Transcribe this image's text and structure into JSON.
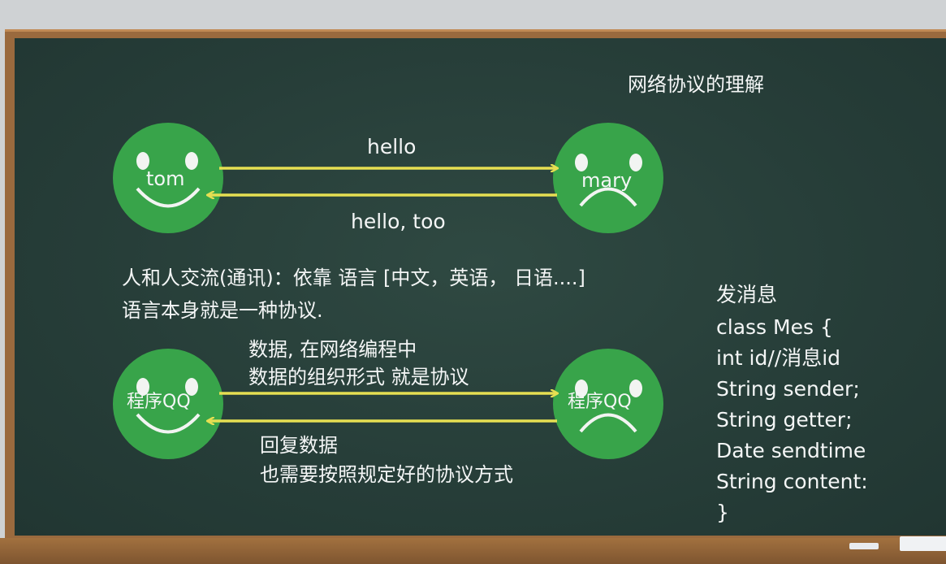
{
  "title": "网络协议的理解",
  "top": {
    "left_face_label": "tom",
    "right_face_label": "mary",
    "forward_label": "hello",
    "back_label": "hello, too"
  },
  "middle": {
    "line1": "人和人交流(通讯)：依靠 语言 [中文，英语， 日语....]",
    "line2": "语言本身就是一种协议."
  },
  "bottom": {
    "left_face_label": "程序QQ",
    "right_face_label": "程序QQ",
    "forward_line1": "数据, 在网络编程中",
    "forward_line2": "数据的组织形式 就是协议",
    "back_line1": "回复数据",
    "back_line2": "也需要按照规定好的协议方式"
  },
  "code": {
    "heading": "发消息",
    "lines": [
      "class Mes {",
      "int id//消息id",
      "String sender;",
      "String getter;",
      "Date sendtime",
      "String content:",
      "}"
    ]
  },
  "colors": {
    "board": "#263d38",
    "frame": "#9a6a3e",
    "face": "#38a44a",
    "arrow": "#e6df52",
    "chalk": "#f4f6f6"
  }
}
